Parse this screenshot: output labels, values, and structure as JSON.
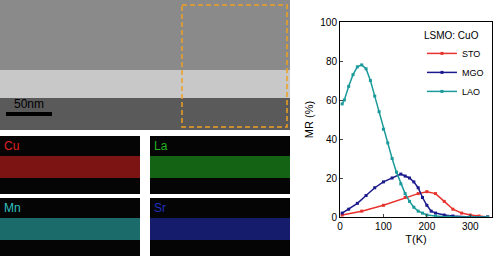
{
  "images": {
    "scale_bar": "50nm",
    "maps": [
      {
        "label": "Cu",
        "color": "#e02020"
      },
      {
        "label": "La",
        "color": "#20b020"
      },
      {
        "label": "Mn",
        "color": "#30c0c0"
      },
      {
        "label": "Sr",
        "color": "#2030c0"
      }
    ]
  },
  "chart_data": {
    "type": "line",
    "x_label": "T(K)",
    "y_label": "MR (%)",
    "legend_title": "LSMO: CuO",
    "legend": "upper right",
    "marker": "square",
    "xlim": [
      0,
      350
    ],
    "xticks": [
      0,
      100,
      200,
      300
    ],
    "ylim": [
      0,
      100
    ],
    "yticks": [
      0,
      20,
      40,
      60,
      80,
      100
    ],
    "series": [
      {
        "name": "STO",
        "color": "#e8322d",
        "x": [
          5,
          50,
          100,
          150,
          180,
          200,
          220,
          240,
          260,
          280,
          300,
          320,
          340
        ],
        "values": [
          1,
          3,
          6,
          10,
          12,
          13,
          12,
          8,
          4,
          2,
          1,
          0.5,
          0
        ]
      },
      {
        "name": "MGO",
        "color": "#1a1a8c",
        "x": [
          5,
          20,
          40,
          60,
          80,
          100,
          120,
          140,
          150,
          160,
          170,
          180,
          190,
          200,
          210,
          220,
          240,
          260,
          300,
          340
        ],
        "values": [
          2,
          4,
          7,
          11,
          15,
          18,
          20,
          22,
          21,
          20,
          18,
          15,
          10,
          6,
          3,
          2,
          1,
          0.5,
          0,
          0
        ]
      },
      {
        "name": "LAO",
        "color": "#1a9a9a",
        "x": [
          5,
          10,
          20,
          30,
          40,
          50,
          60,
          70,
          80,
          90,
          100,
          110,
          120,
          130,
          140,
          150,
          160,
          170,
          180,
          190,
          200,
          220,
          250,
          300,
          340
        ],
        "values": [
          58,
          60,
          67,
          73,
          77,
          78,
          76,
          70,
          62,
          54,
          45,
          38,
          30,
          23,
          17,
          12,
          8,
          5,
          3,
          2,
          1,
          0.5,
          0,
          0,
          0
        ]
      }
    ]
  }
}
